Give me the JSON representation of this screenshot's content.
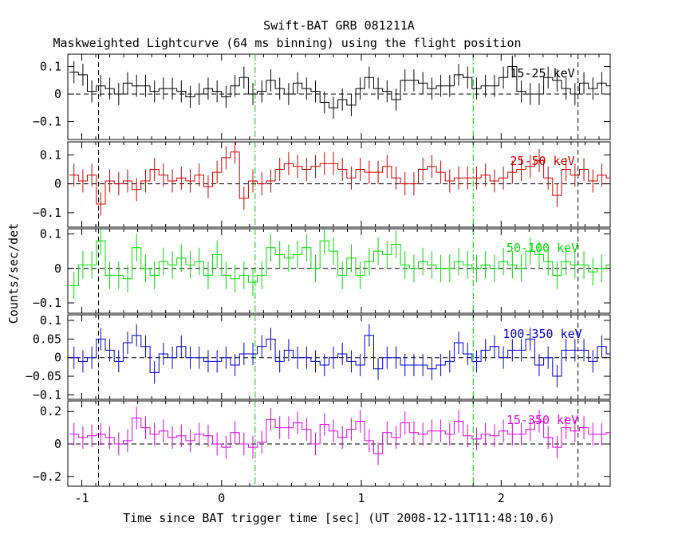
{
  "title": "Swift-BAT GRB 081211A",
  "subtitle": "Maskweighted Lightcurve (64 ms binning) using the flight position",
  "chart_data": {
    "type": "line",
    "title": "Swift-BAT GRB 081211A",
    "subtitle": "Maskweighted Lightcurve (64 ms binning) using the flight position",
    "xlabel": "Time since BAT trigger time [sec] (UT 2008-12-11T11:48:10.6)",
    "ylabel": "Counts/sec/det",
    "xlim": [
      -1.1,
      2.78
    ],
    "x_ticks": [
      -1,
      0,
      1,
      2
    ],
    "x_tick_labels": [
      "-1",
      "0",
      "1",
      "2"
    ],
    "bin_width": 0.064,
    "x_start": -1.088,
    "vlines": [
      {
        "x": -0.88,
        "style": "dashed",
        "color": "#000000"
      },
      {
        "x": 0.24,
        "style": "dash-dot",
        "color": "#00cc00"
      },
      {
        "x": 1.8,
        "style": "dash-dot",
        "color": "#00cc00"
      },
      {
        "x": 2.55,
        "style": "dashed",
        "color": "#000000"
      }
    ],
    "panels": [
      {
        "name": "15-25 keV",
        "label": "15-25 keV",
        "color": "#000000",
        "ylim": [
          -0.165,
          0.145
        ],
        "yticks": [
          -0.1,
          0,
          0.1
        ],
        "ytick_labels": [
          "−0.1",
          "0",
          "0.1"
        ],
        "err": 0.04,
        "values": [
          0.08,
          0.07,
          0.01,
          0.03,
          0.02,
          0.0,
          0.04,
          0.03,
          0.03,
          0.01,
          0.02,
          0.02,
          0.01,
          -0.01,
          0.0,
          0.02,
          0.01,
          -0.01,
          0.03,
          0.06,
          0.0,
          0.01,
          0.05,
          0.02,
          0.0,
          0.04,
          0.02,
          0.01,
          -0.03,
          -0.05,
          -0.02,
          -0.04,
          0.02,
          0.06,
          0.02,
          0.01,
          -0.02,
          0.05,
          0.05,
          0.04,
          0.02,
          0.03,
          0.03,
          0.07,
          0.06,
          0.02,
          0.03,
          0.03,
          0.06,
          0.1,
          0.01,
          0.0,
          0.0,
          0.06,
          0.05,
          0.02,
          0.0,
          0.04,
          0.02,
          0.04,
          0.03,
          0.02,
          0.01,
          -0.02
        ]
      },
      {
        "name": "25-50 keV",
        "label": "25-50 keV",
        "color": "#cc0000",
        "ylim": [
          -0.15,
          0.145
        ],
        "yticks": [
          -0.1,
          0,
          0.1
        ],
        "ytick_labels": [
          "−0.1",
          "0",
          "0.1"
        ],
        "err": 0.04,
        "values": [
          0.03,
          0.01,
          0.03,
          -0.07,
          0.01,
          0.0,
          0.01,
          -0.02,
          0.01,
          0.05,
          0.03,
          0.01,
          0.02,
          0.01,
          0.03,
          -0.01,
          0.04,
          0.09,
          0.11,
          -0.05,
          0.01,
          0.0,
          0.01,
          0.05,
          0.07,
          0.06,
          0.05,
          0.06,
          0.07,
          0.07,
          0.05,
          0.02,
          0.05,
          0.04,
          0.04,
          0.06,
          0.02,
          0.0,
          0.0,
          0.05,
          0.06,
          0.04,
          0.01,
          0.02,
          0.02,
          0.02,
          0.03,
          0.01,
          0.02,
          0.04,
          0.05,
          0.06,
          0.08,
          0.02,
          -0.04,
          0.05,
          0.03,
          0.05,
          0.01,
          0.03,
          0.02,
          0.01,
          0.03,
          0.0
        ]
      },
      {
        "name": "50-100 keV",
        "label": "50-100 keV",
        "color": "#00dd00",
        "ylim": [
          -0.13,
          0.115
        ],
        "yticks": [
          -0.1,
          0,
          0.1
        ],
        "ytick_labels": [
          "−0.1",
          "0",
          "0.1"
        ],
        "err": 0.04,
        "values": [
          -0.05,
          0.01,
          0.01,
          0.08,
          -0.02,
          -0.02,
          -0.03,
          0.06,
          0.0,
          -0.02,
          0.02,
          0.01,
          0.03,
          0.01,
          0.02,
          -0.02,
          0.04,
          -0.02,
          -0.03,
          -0.02,
          -0.04,
          -0.02,
          0.06,
          0.04,
          0.03,
          0.04,
          0.06,
          0.0,
          0.08,
          0.05,
          -0.02,
          0.03,
          -0.02,
          0.02,
          0.05,
          0.04,
          0.07,
          0.01,
          0.0,
          0.02,
          0.01,
          0.0,
          0.0,
          0.02,
          0.01,
          0.0,
          0.01,
          0.0,
          0.02,
          0.01,
          0.0,
          0.05,
          0.04,
          0.02,
          -0.02,
          0.02,
          0.01,
          0.01,
          -0.01,
          0.0,
          0.01,
          0.01,
          0.0,
          -0.01
        ]
      },
      {
        "name": "100-350 keV",
        "label": "100-350 keV",
        "color": "#0000cc",
        "ylim": [
          -0.112,
          0.115
        ],
        "yticks": [
          -0.1,
          -0.05,
          0,
          0.05,
          0.1
        ],
        "ytick_labels": [
          "−0.1",
          "−0.05",
          "0",
          "0.05",
          "0.1"
        ],
        "err": 0.03,
        "values": [
          0.0,
          -0.01,
          0.0,
          0.05,
          0.02,
          -0.01,
          0.04,
          0.06,
          0.03,
          -0.04,
          0.01,
          0.0,
          0.03,
          0.0,
          0.0,
          -0.01,
          -0.01,
          0.0,
          -0.02,
          0.01,
          0.01,
          0.03,
          0.05,
          -0.01,
          0.02,
          0.0,
          0.0,
          -0.01,
          -0.02,
          0.0,
          0.01,
          -0.01,
          -0.02,
          0.06,
          -0.03,
          0.0,
          0.0,
          -0.02,
          -0.02,
          -0.02,
          -0.03,
          -0.02,
          -0.01,
          0.04,
          0.01,
          -0.01,
          0.02,
          0.03,
          0.0,
          0.02,
          0.02,
          0.05,
          -0.02,
          0.0,
          -0.05,
          0.02,
          0.02,
          0.02,
          -0.01,
          0.03,
          0.01,
          0.0,
          0.02,
          0.02
        ]
      },
      {
        "name": "15-350 keV",
        "label": "15-350 keV",
        "color": "#dd00dd",
        "ylim": [
          -0.26,
          0.265
        ],
        "yticks": [
          -0.2,
          0,
          0.2
        ],
        "ytick_labels": [
          "−0.2",
          "0",
          "0.2"
        ],
        "err": 0.07,
        "values": [
          0.06,
          0.04,
          0.05,
          0.06,
          0.04,
          0.0,
          0.02,
          0.16,
          0.1,
          0.06,
          0.08,
          0.04,
          0.05,
          0.02,
          0.06,
          0.05,
          0.0,
          -0.02,
          0.07,
          0.0,
          -0.02,
          0.01,
          0.15,
          0.1,
          0.1,
          0.13,
          0.09,
          0.0,
          0.12,
          0.08,
          0.04,
          0.09,
          0.14,
          0.02,
          -0.06,
          0.07,
          0.04,
          0.13,
          0.07,
          0.06,
          0.08,
          0.08,
          0.06,
          0.14,
          0.05,
          0.03,
          0.06,
          0.05,
          0.08,
          0.06,
          0.06,
          0.09,
          0.14,
          0.04,
          -0.02,
          0.1,
          0.08,
          0.1,
          0.06,
          0.06,
          0.07,
          0.06,
          0.05,
          0.04
        ]
      }
    ]
  }
}
